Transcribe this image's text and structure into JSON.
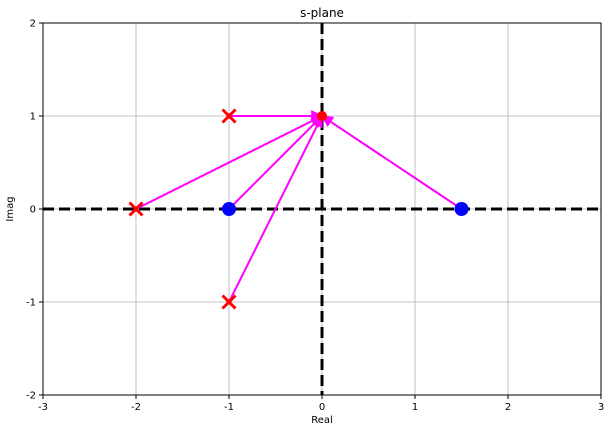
{
  "colors": {
    "pole": "#ff0000",
    "zero": "#0000ff",
    "vector": "#ff00ff",
    "test_point": "#ff0000",
    "axis_line": "#000000",
    "grid": "#b0b0b0"
  },
  "chart_data": {
    "type": "scatter",
    "title": "s-plane",
    "xlabel": "Real",
    "ylabel": "Imag",
    "xlim": [
      -3,
      3
    ],
    "ylim": [
      -2,
      2
    ],
    "xticks": [
      -3,
      -2,
      -1,
      0,
      1,
      2,
      3
    ],
    "yticks": [
      -2,
      -1,
      0,
      1,
      2
    ],
    "grid": true,
    "poles": [
      [
        -1,
        1
      ],
      [
        -2,
        0
      ],
      [
        -1,
        -1
      ]
    ],
    "zeros": [
      [
        -1,
        0
      ],
      [
        1.5,
        0
      ]
    ],
    "test_point": [
      0,
      1
    ],
    "vectors_to_test_point": [
      [
        -1,
        1
      ],
      [
        -2,
        0
      ],
      [
        -1,
        0
      ],
      [
        -1,
        -1
      ],
      [
        1.5,
        0
      ]
    ],
    "reference_lines": [
      {
        "axis": "x",
        "value": 0
      },
      {
        "axis": "y",
        "value": 0
      }
    ]
  }
}
